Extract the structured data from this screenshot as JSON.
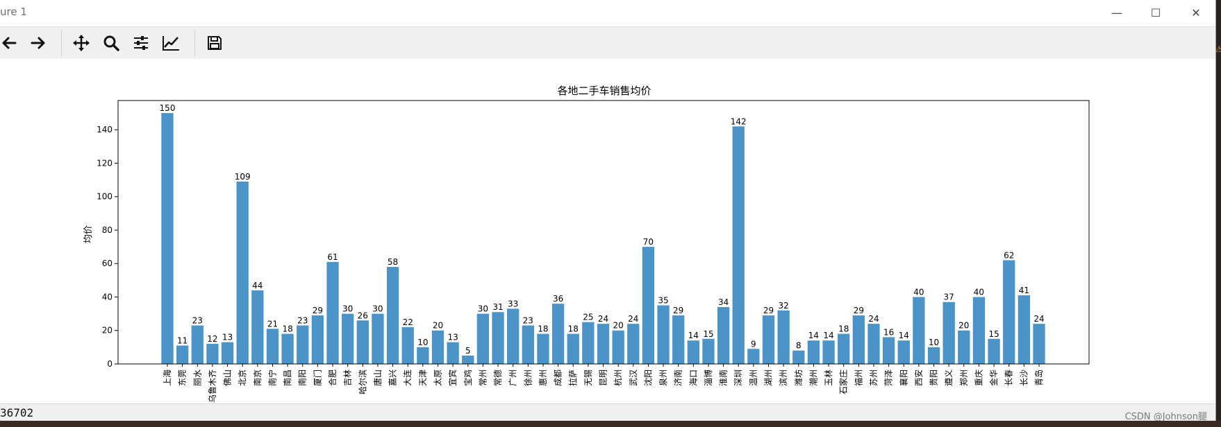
{
  "window": {
    "title": "ure 1",
    "controls": {
      "minimize": "—",
      "maximize": "☐",
      "close": "✕"
    }
  },
  "toolbar": {
    "buttons": [
      {
        "name": "back",
        "icon": "arrow-left-icon"
      },
      {
        "name": "forward",
        "icon": "arrow-right-icon"
      },
      {
        "name": "pan",
        "icon": "move-icon"
      },
      {
        "name": "zoom",
        "icon": "magnifier-icon"
      },
      {
        "name": "configure-subplots",
        "icon": "sliders-icon"
      },
      {
        "name": "edit-axis",
        "icon": "line-chart-icon"
      },
      {
        "name": "save",
        "icon": "floppy-disk-icon"
      }
    ]
  },
  "status": {
    "text": "36702"
  },
  "watermark": {
    "text": "CSDN @Johnson腿"
  },
  "chart_data": {
    "type": "bar",
    "title": "各地二手车销售均价",
    "xlabel": "",
    "ylabel": "均价",
    "ylim": [
      0,
      157.5
    ],
    "yticks": [
      0,
      20,
      40,
      60,
      80,
      100,
      120,
      140
    ],
    "grid": false,
    "color": "#4a94c9",
    "categories": [
      "上海",
      "东莞",
      "丽水",
      "乌鲁木齐",
      "佛山",
      "北京",
      "南京",
      "南宁",
      "南昌",
      "南阳",
      "厦门",
      "合肥",
      "吉林",
      "哈尔滨",
      "唐山",
      "嘉兴",
      "大连",
      "天津",
      "太原",
      "宜宾",
      "宝鸡",
      "常州",
      "常德",
      "广州",
      "徐州",
      "惠州",
      "成都",
      "拉萨",
      "无锡",
      "昆明",
      "杭州",
      "武汉",
      "沈阳",
      "泉州",
      "济南",
      "海口",
      "淄博",
      "淮南",
      "深圳",
      "温州",
      "湖州",
      "滨州",
      "潍坊",
      "潮州",
      "玉林",
      "石家庄",
      "福州",
      "苏州",
      "菏泽",
      "襄阳",
      "西安",
      "贵阳",
      "遵义",
      "郑州",
      "重庆",
      "金华",
      "长春",
      "长沙",
      "青岛"
    ],
    "values": [
      150,
      11,
      23,
      12,
      13,
      109,
      44,
      21,
      18,
      23,
      29,
      61,
      30,
      26,
      30,
      58,
      22,
      10,
      20,
      13,
      5,
      30,
      31,
      33,
      23,
      18,
      36,
      18,
      25,
      24,
      20,
      24,
      70,
      35,
      29,
      14,
      15,
      34,
      142,
      9,
      29,
      32,
      8,
      14,
      14,
      18,
      29,
      24,
      16,
      14,
      40,
      10,
      37,
      20,
      40,
      15,
      62,
      41,
      24
    ]
  }
}
